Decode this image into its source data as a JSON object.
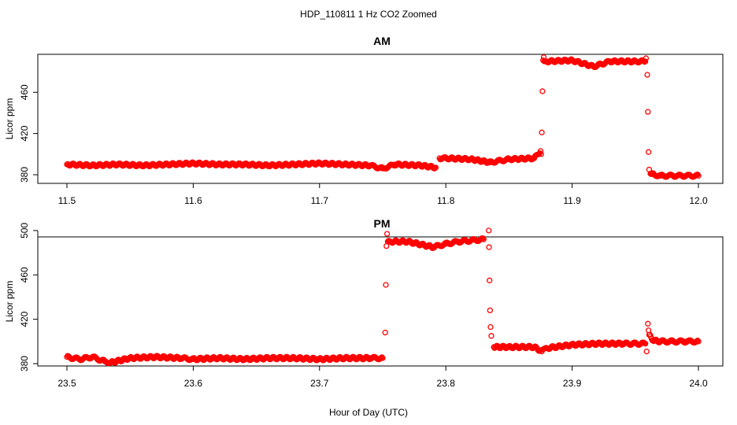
{
  "chart_data": [
    {
      "type": "scatter",
      "figure_title": "HDP_110811  1 Hz CO2 Zoomed",
      "title": "AM",
      "xlabel": "",
      "ylabel": "Licor ppm",
      "xlim": [
        11.5,
        12.0
      ],
      "ylim": [
        375,
        500
      ],
      "x_ticks": [
        11.5,
        11.6,
        11.7,
        11.8,
        11.9,
        12.0
      ],
      "x_tick_labels": [
        "11.5",
        "11.6",
        "11.7",
        "11.8",
        "11.9",
        "12.0"
      ],
      "y_ticks": [
        380,
        420,
        460
      ],
      "y_tick_labels": [
        "380",
        "420",
        "460"
      ],
      "grid": false,
      "marker": "open-circle",
      "marker_color": "#ff0000",
      "series": [
        {
          "x": [
            11.5,
            11.52,
            11.54,
            11.56,
            11.58,
            11.6,
            11.62,
            11.64,
            11.66,
            11.68,
            11.7,
            11.72,
            11.74,
            11.75,
            11.76,
            11.78,
            11.792,
            11.795,
            11.8,
            11.82,
            11.835,
            11.85,
            11.87,
            11.875,
            11.8755,
            11.876,
            11.8765,
            11.877,
            11.8775,
            11.878,
            11.88,
            11.9,
            11.917,
            11.93,
            11.95,
            11.958,
            11.9585,
            11.9595,
            11.96,
            11.9605,
            11.961,
            11.962,
            11.965,
            11.97,
            11.98,
            11.99,
            12.0
          ],
          "y": [
            390,
            389,
            390,
            389,
            390,
            391,
            390,
            390,
            389,
            390,
            391,
            390,
            389,
            386,
            390,
            389,
            387,
            396,
            396,
            395,
            392,
            395,
            396,
            403,
            400,
            421,
            461,
            491,
            494,
            490,
            490,
            491,
            485,
            490,
            490,
            490,
            493,
            477,
            441,
            402,
            385,
            381,
            380,
            379,
            379,
            379,
            379
          ]
        }
      ]
    },
    {
      "type": "scatter",
      "title": "PM",
      "xlabel": "Hour of Day (UTC)",
      "ylabel": "Licor ppm",
      "xlim": [
        23.5,
        24.0
      ],
      "ylim": [
        355,
        510
      ],
      "x_ticks": [
        23.5,
        23.6,
        23.7,
        23.8,
        23.9,
        24.0
      ],
      "x_tick_labels": [
        "23.5",
        "23.6",
        "23.7",
        "23.8",
        "23.9",
        "24.0"
      ],
      "y_ticks": [
        380,
        420,
        460,
        500
      ],
      "y_tick_labels": [
        "380",
        "420",
        "460",
        "500"
      ],
      "grid": false,
      "marker": "open-circle",
      "marker_color": "#ff0000",
      "series": [
        {
          "x": [
            23.5,
            23.51,
            23.52,
            23.53,
            23.535,
            23.55,
            23.57,
            23.59,
            23.6,
            23.62,
            23.64,
            23.66,
            23.68,
            23.7,
            23.72,
            23.74,
            23.75,
            23.752,
            23.7525,
            23.753,
            23.7535,
            23.754,
            23.756,
            23.77,
            23.79,
            23.8,
            23.81,
            23.82,
            23.83,
            23.834,
            23.8342,
            23.8346,
            23.835,
            23.8354,
            23.836,
            23.838,
            23.85,
            23.87,
            23.876,
            23.88,
            23.9,
            23.92,
            23.94,
            23.958,
            23.959,
            23.96,
            23.9605,
            23.961,
            23.964,
            23.97,
            23.98,
            23.99,
            24.0
          ],
          "y": [
            386,
            384,
            386,
            382,
            381,
            385,
            386,
            385,
            384,
            385,
            384,
            385,
            385,
            384,
            385,
            385,
            385,
            408,
            451,
            486,
            497,
            490,
            490,
            490,
            485,
            488,
            490,
            491,
            492,
            500,
            485,
            455,
            428,
            413,
            405,
            395,
            395,
            395,
            391,
            394,
            397,
            398,
            398,
            398,
            391,
            416,
            410,
            406,
            401,
            400,
            400,
            400,
            400
          ]
        }
      ]
    }
  ]
}
